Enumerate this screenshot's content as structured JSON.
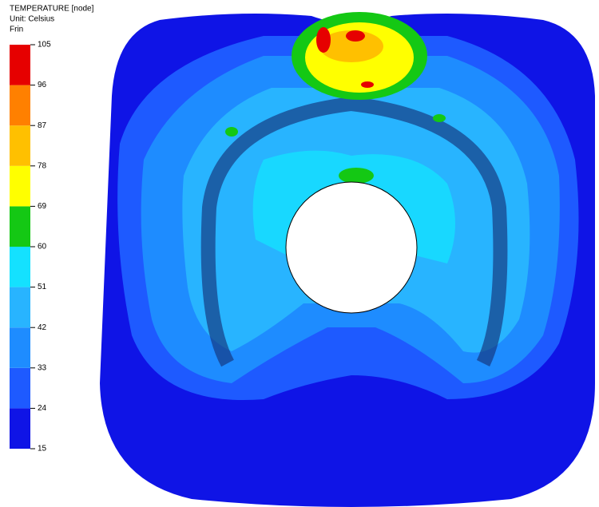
{
  "legend": {
    "title": [
      "TEMPERATURE [node]",
      "Unit: Celsius",
      "Frin"
    ],
    "ticks": [
      15,
      24,
      33,
      42,
      51,
      60,
      69,
      78,
      87,
      96,
      105
    ],
    "colors": [
      "#0f14e6",
      "#1e5aff",
      "#1e8cff",
      "#28b4ff",
      "#14e1ff",
      "#14c814",
      "#ffff00",
      "#ffc000",
      "#ff8000",
      "#e60000"
    ]
  }
}
